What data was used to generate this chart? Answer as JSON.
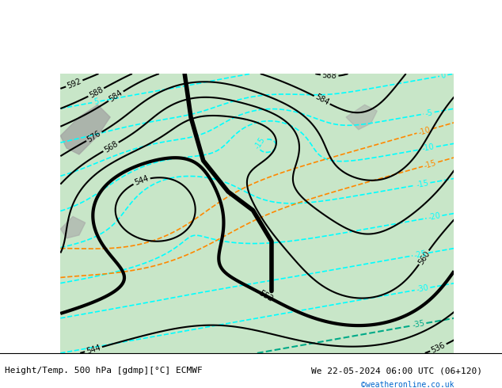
{
  "title_left": "Height/Temp. 500 hPa [gdmp][°C] ECMWF",
  "title_right": "We 22-05-2024 06:00 UTC (06+120)",
  "watermark": "©weatheronline.co.uk",
  "bg_color": "#c8e6c8",
  "land_color": "#c8e6c8",
  "sea_color": "#d8eef8",
  "gray_region_color": "#b0b0b0",
  "white_bg": "#ffffff",
  "figsize": [
    6.34,
    4.9
  ],
  "dpi": 100
}
